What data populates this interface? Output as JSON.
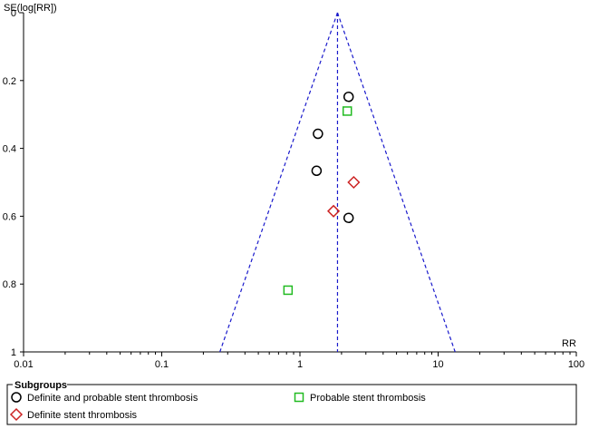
{
  "chart_data": {
    "type": "scatter",
    "title": "",
    "xlabel": "RR",
    "ylabel": "SE(log[RR])",
    "x_scale": "log",
    "xlim": [
      0.01,
      100
    ],
    "ylim": [
      0,
      1
    ],
    "y_inverted": true,
    "x_ticks": [
      "0.01",
      "0.1",
      "1",
      "10",
      "100"
    ],
    "y_ticks": [
      "0",
      "0.2",
      "0.4",
      "0.6",
      "0.8",
      "1"
    ],
    "pooled_estimate": 1.87,
    "funnel": {
      "apex_se": 0,
      "base_se": 1,
      "ci_multiplier": 1.96,
      "line_style": "dashed",
      "color": "#1a1acc"
    },
    "grid": false,
    "legend": {
      "title": "Subgroups",
      "placement": "bottom",
      "entries": [
        {
          "label": "Definite and probable stent thrombosis",
          "marker": "circle",
          "color": "#000000"
        },
        {
          "label": "Probable stent thrombosis",
          "marker": "square",
          "color": "#22bb22"
        },
        {
          "label": "Definite stent thrombosis",
          "marker": "diamond",
          "color": "#cc2222"
        }
      ]
    },
    "series": [
      {
        "name": "Definite and probable stent thrombosis",
        "marker": "circle",
        "color": "#000000",
        "points": [
          {
            "x": 2.25,
            "y": 0.248
          },
          {
            "x": 1.35,
            "y": 0.357
          },
          {
            "x": 1.32,
            "y": 0.466
          },
          {
            "x": 2.25,
            "y": 0.605
          }
        ]
      },
      {
        "name": "Probable stent thrombosis",
        "marker": "square",
        "color": "#22bb22",
        "points": [
          {
            "x": 2.2,
            "y": 0.29
          },
          {
            "x": 0.82,
            "y": 0.818
          }
        ]
      },
      {
        "name": "Definite stent thrombosis",
        "marker": "diamond",
        "color": "#cc2222",
        "points": [
          {
            "x": 2.45,
            "y": 0.5
          },
          {
            "x": 1.75,
            "y": 0.585
          }
        ]
      }
    ]
  }
}
